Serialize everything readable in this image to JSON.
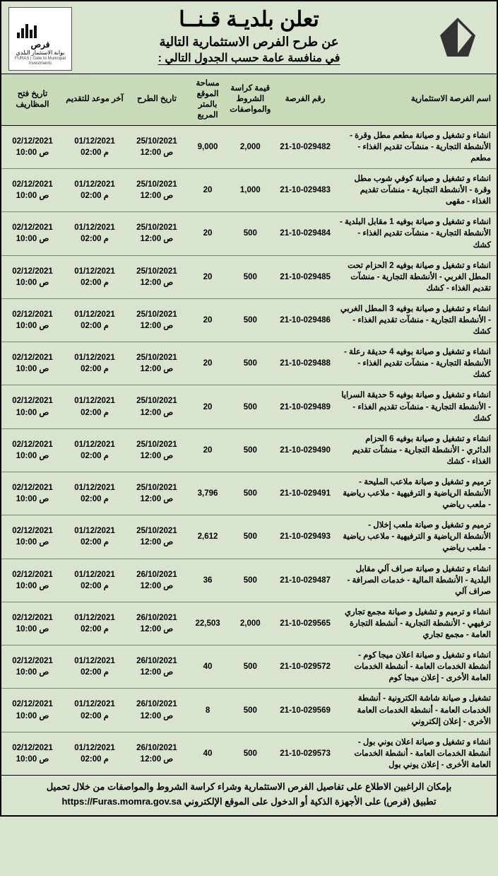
{
  "header": {
    "title_main": "تعلن بلديـة قـنــا",
    "title_sub1": "عن طرح الفرص الاستثمارية التالية",
    "title_sub2": "في منافسة عامة حسب الجدول التالي :",
    "logo_left_ar": "فرص",
    "logo_left_sub": "بوابة الاستثمار البلدي",
    "logo_left_en": "FURAS | Gate to Municipal Investments"
  },
  "columns": {
    "name": "اسم الفرصة الاستثمارية",
    "num": "رقم الفرصة",
    "fee": "قيمة كراسة الشروط والمواصفات",
    "area": "مساحة الموقع بالمتر المربع",
    "announce": "تاريخ الطرح",
    "deadline": "آخر موعد للتقديم",
    "open": "تاريخ فتح المظاريف"
  },
  "rows": [
    {
      "name": "انشاء و تشغيل و صيانة مطعم مطل وقرة - الأنشطة التجارية - منشآت تقديم الغذاء - مطعم",
      "num": "21-10-029482",
      "fee": "2,000",
      "area": "9,000",
      "announce": "25/10/2021\n12:00 ص",
      "deadline": "01/12/2021\n02:00 م",
      "open": "02/12/2021\n10:00 ص"
    },
    {
      "name": "انشاء و تشغيل و صيانة كوفي شوب مطل وقرة - الأنشطة التجارية - منشآت تقديم الغذاء - مقهى",
      "num": "21-10-029483",
      "fee": "1,000",
      "area": "20",
      "announce": "25/10/2021\n12:00 ص",
      "deadline": "01/12/2021\n02:00 م",
      "open": "02/12/2021\n10:00 ص"
    },
    {
      "name": "انشاء و تشغيل و صيانة بوفيه 1 مقابل البلدية - الأنشطة التجارية - منشآت تقديم الغذاء - كشك",
      "num": "21-10-029484",
      "fee": "500",
      "area": "20",
      "announce": "25/10/2021\n12:00 ص",
      "deadline": "01/12/2021\n02:00 م",
      "open": "02/12/2021\n10:00 ص"
    },
    {
      "name": "انشاء و تشغيل و صيانة بوفيه 2 الحزام تحت المطل الغربي - الأنشطة التجارية - منشآت تقديم الغذاء - كشك",
      "num": "21-10-029485",
      "fee": "500",
      "area": "20",
      "announce": "25/10/2021\n12:00 ص",
      "deadline": "01/12/2021\n02:00 م",
      "open": "02/12/2021\n10:00 ص"
    },
    {
      "name": "انشاء و تشغيل و صيانة بوفيه 3 المطل الغربي - الأنشطة التجارية - منشآت تقديم الغذاء - كشك",
      "num": "21-10-029486",
      "fee": "500",
      "area": "20",
      "announce": "25/10/2021\n12:00 ص",
      "deadline": "01/12/2021\n02:00 م",
      "open": "02/12/2021\n10:00 ص"
    },
    {
      "name": "انشاء و تشغيل و صيانة بوفيه 4 حديقة رعلة - الأنشطة التجارية - منشآت تقديم الغذاء - كشك",
      "num": "21-10-029488",
      "fee": "500",
      "area": "20",
      "announce": "25/10/2021\n12:00 ص",
      "deadline": "01/12/2021\n02:00 م",
      "open": "02/12/2021\n10:00 ص"
    },
    {
      "name": "انشاء و تشغيل و صيانة بوفيه 5 حديقة السرايا - الأنشطة التجارية - منشآت تقديم الغذاء - كشك",
      "num": "21-10-029489",
      "fee": "500",
      "area": "20",
      "announce": "25/10/2021\n12:00 ص",
      "deadline": "01/12/2021\n02:00 م",
      "open": "02/12/2021\n10:00 ص"
    },
    {
      "name": "انشاء و تشغيل و صيانة بوفيه 6 الحزام الدائري - الأنشطة التجارية - منشآت تقديم الغذاء - كشك",
      "num": "21-10-029490",
      "fee": "500",
      "area": "20",
      "announce": "25/10/2021\n12:00 ص",
      "deadline": "01/12/2021\n02:00 م",
      "open": "02/12/2021\n10:00 ص"
    },
    {
      "name": "ترميم و تشغيل و صيانة ملاعب المليحة - الأنشطة الرياضية و الترفيهية - ملاعب رياضية - ملعب رياضي",
      "num": "21-10-029491",
      "fee": "500",
      "area": "3,796",
      "announce": "25/10/2021\n12:00 ص",
      "deadline": "01/12/2021\n02:00 م",
      "open": "02/12/2021\n10:00 ص"
    },
    {
      "name": "ترميم و تشغيل و صيانة ملعب إخلال - الأنشطة الرياضية و الترفيهية - ملاعب رياضية - ملعب رياضي",
      "num": "21-10-029493",
      "fee": "500",
      "area": "2,612",
      "announce": "25/10/2021\n12:00 ص",
      "deadline": "01/12/2021\n02:00 م",
      "open": "02/12/2021\n10:00 ص"
    },
    {
      "name": "انشاء و تشغيل و صيانة صراف آلي مقابل البلدية - الأنشطة المالية - خدمات الصرافة - صراف آلي",
      "num": "21-10-029487",
      "fee": "500",
      "area": "36",
      "announce": "26/10/2021\n12:00 ص",
      "deadline": "01/12/2021\n02:00 م",
      "open": "02/12/2021\n10:00 ص"
    },
    {
      "name": "انشاء و ترميم و تشغيل و صيانة مجمع تجاري ترفيهي - الأنشطة التجارية - أنشطة التجارة العامة - مجمع تجاري",
      "num": "21-10-029565",
      "fee": "2,000",
      "area": "22,503",
      "announce": "26/10/2021\n12:00 ص",
      "deadline": "01/12/2021\n02:00 م",
      "open": "02/12/2021\n10:00 ص"
    },
    {
      "name": "انشاء و تشغيل و صيانة اعلان ميجا كوم - أنشطة الخدمات العامة - أنشطة الخدمات العامة الأخرى - إعلان ميجا كوم",
      "num": "21-10-029572",
      "fee": "500",
      "area": "40",
      "announce": "26/10/2021\n12:00 ص",
      "deadline": "01/12/2021\n02:00 م",
      "open": "02/12/2021\n10:00 ص"
    },
    {
      "name": "تشغيل و صيانة شاشة الكترونية - أنشطة الخدمات العامة - أنشطة الخدمات العامة الأخرى - إعلان إلكتروني",
      "num": "21-10-029569",
      "fee": "500",
      "area": "8",
      "announce": "26/10/2021\n12:00 ص",
      "deadline": "01/12/2021\n02:00 م",
      "open": "02/12/2021\n10:00 ص"
    },
    {
      "name": "انشاء و تشغيل و صيانة اعلان يوني بول - أنشطة الخدمات العامة - أنشطة الخدمات العامة الأخرى - إعلان يوني بول",
      "num": "21-10-029573",
      "fee": "500",
      "area": "40",
      "announce": "26/10/2021\n12:00 ص",
      "deadline": "01/12/2021\n02:00 م",
      "open": "02/12/2021\n10:00 ص"
    }
  ],
  "footer": {
    "line1": "بإمكان الراغبين الاطلاع على تفاصيل الفرص الاستثمارية وشراء كراسة الشروط والمواصفات من خلال تحميل",
    "line2": "تطبيق (فرص) على الأجهزة الذكية أو الدخول على الموقع الإلكتروني",
    "url": "https://Furas.momra.gov.sa"
  },
  "style": {
    "bg": "#d8e4cd",
    "header_bg": "#c9dab8",
    "border": "#000000",
    "row_border": "#7a8a6a"
  }
}
